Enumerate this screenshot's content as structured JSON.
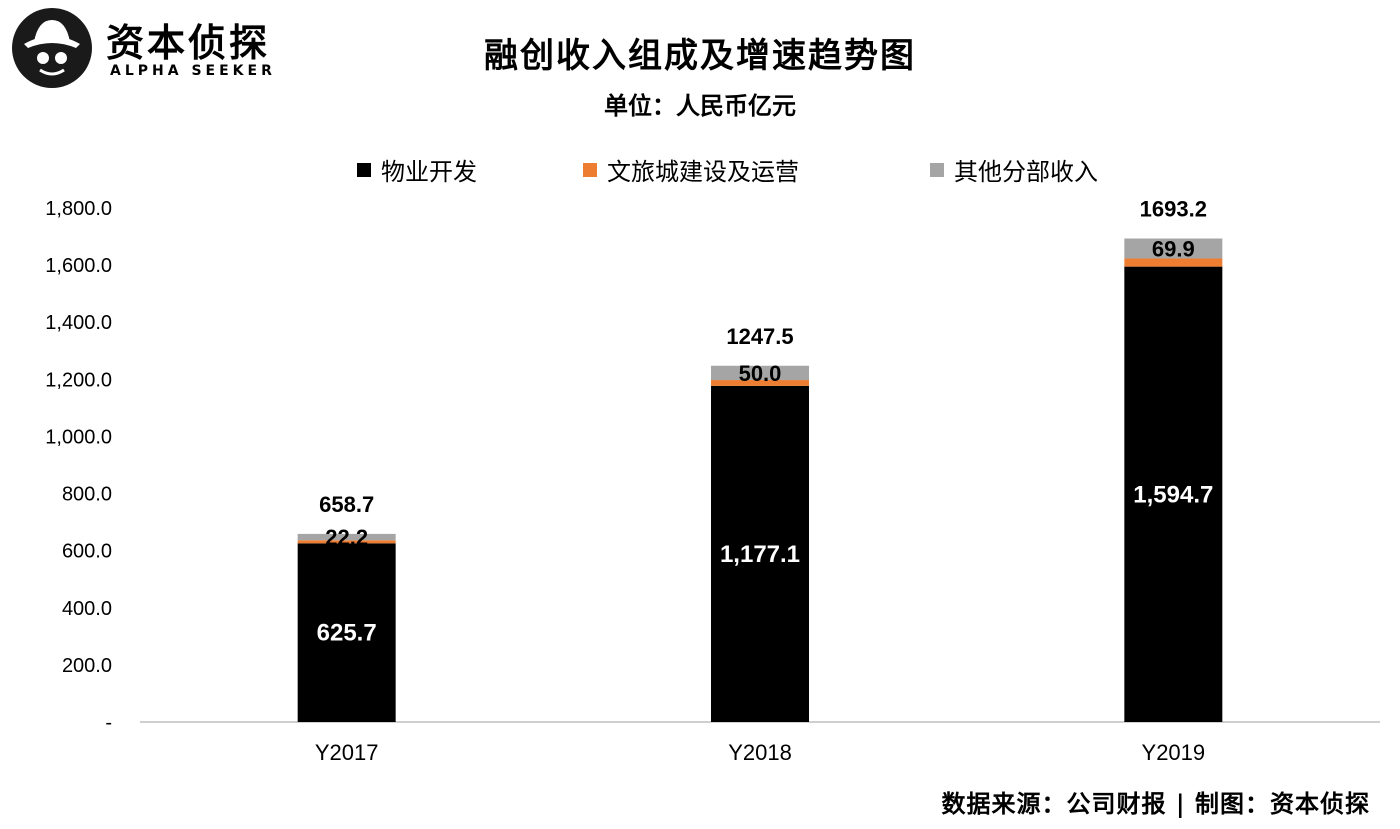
{
  "logo": {
    "name_cn": "资本侦探",
    "name_en": "ALPHA SEEKER",
    "icon": "detective-hat-icon"
  },
  "source_note": "数据来源：公司财报 | 制图：资本侦探",
  "colors": {
    "property": "#000000",
    "cultural_tourism": "#ed7d31",
    "other": "#a5a5a5",
    "axis": "#bfbfbf"
  },
  "chart_data": {
    "type": "bar",
    "stacked": true,
    "title": "融创收入组成及增速趋势图",
    "subtitle": "单位：人民币亿元",
    "categories": [
      "Y2017",
      "Y2018",
      "Y2019"
    ],
    "series": [
      {
        "name": "物业开发",
        "values": [
          625.7,
          1177.1,
          1594.7
        ],
        "labels": [
          "625.7",
          "1,177.1",
          "1,594.7"
        ]
      },
      {
        "name": "文旅城建设及运营",
        "values": [
          10.8,
          20.4,
          28.6
        ],
        "labels": [
          "",
          "",
          ""
        ]
      },
      {
        "name": "其他分部收入",
        "values": [
          22.2,
          50.0,
          69.9
        ],
        "labels": [
          "22.2",
          "50.0",
          "69.9"
        ]
      }
    ],
    "totals": [
      658.7,
      1247.5,
      1693.2
    ],
    "total_labels": [
      "658.7",
      "1247.5",
      "1693.2"
    ],
    "ylim": [
      0,
      1800
    ],
    "y_ticks": [
      0,
      200,
      400,
      600,
      800,
      1000,
      1200,
      1400,
      1600,
      1800
    ],
    "y_tick_labels": [
      "-",
      "200.0",
      "400.0",
      "600.0",
      "800.0",
      "1,000.0",
      "1,200.0",
      "1,400.0",
      "1,600.0",
      "1,800.0"
    ],
    "grid": false,
    "legend_position": "top"
  }
}
